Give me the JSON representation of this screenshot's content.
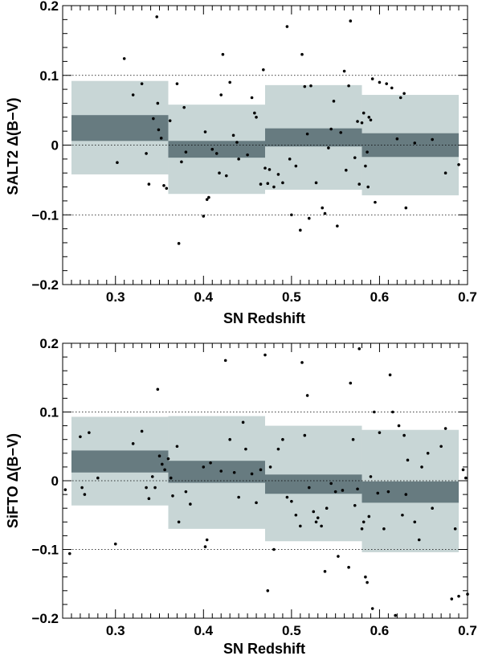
{
  "chart_data": [
    {
      "type": "scatter",
      "xlabel": "SN Redshift",
      "ylabel": "SALT2 Δ(B−V)",
      "xlim": [
        0.24,
        0.7
      ],
      "ylim": [
        -0.2,
        0.2
      ],
      "x_ticks": [
        0.3,
        0.4,
        0.5,
        0.6,
        0.7
      ],
      "x_tick_labels": [
        "0.3",
        "0.4",
        "0.5",
        "0.6",
        "0.7"
      ],
      "y_ticks": [
        -0.2,
        -0.1,
        0,
        0.1,
        0.2
      ],
      "y_tick_labels": [
        "−0.2",
        "−0.1",
        "0",
        "0.1",
        "0.2"
      ],
      "reference_lines": [
        -0.1,
        0,
        0.1
      ],
      "colors": {
        "outer_band": "#c8d6d6",
        "inner_band": "#677b80",
        "points": "#000000"
      },
      "bins": [
        {
          "x0": 0.25,
          "x1": 0.36,
          "outer": [
            -0.042,
            0.092
          ],
          "inner": [
            0.006,
            0.043
          ]
        },
        {
          "x0": 0.36,
          "x1": 0.47,
          "outer": [
            -0.07,
            0.058
          ],
          "inner": [
            -0.018,
            0.006
          ]
        },
        {
          "x0": 0.47,
          "x1": 0.58,
          "outer": [
            -0.064,
            0.086
          ],
          "inner": [
            -0.002,
            0.024
          ]
        },
        {
          "x0": 0.58,
          "x1": 0.69,
          "outer": [
            -0.072,
            0.072
          ],
          "inner": [
            -0.017,
            0.017
          ]
        }
      ],
      "points": [
        [
          0.302,
          -0.025
        ],
        [
          0.31,
          0.124
        ],
        [
          0.32,
          0.072
        ],
        [
          0.33,
          0.088
        ],
        [
          0.335,
          -0.012
        ],
        [
          0.338,
          -0.056
        ],
        [
          0.343,
          0.038
        ],
        [
          0.347,
          0.184
        ],
        [
          0.348,
          0.06
        ],
        [
          0.349,
          0.022
        ],
        [
          0.352,
          0.01
        ],
        [
          0.355,
          -0.058
        ],
        [
          0.358,
          -0.062
        ],
        [
          0.362,
          0.035
        ],
        [
          0.37,
          0.088
        ],
        [
          0.372,
          -0.141
        ],
        [
          0.375,
          -0.024
        ],
        [
          0.378,
          0.054
        ],
        [
          0.38,
          -0.01
        ],
        [
          0.4,
          -0.102
        ],
        [
          0.402,
          0.019
        ],
        [
          0.404,
          -0.078
        ],
        [
          0.406,
          -0.075
        ],
        [
          0.41,
          -0.006
        ],
        [
          0.415,
          -0.012
        ],
        [
          0.418,
          -0.04
        ],
        [
          0.42,
          0.072
        ],
        [
          0.422,
          0.13
        ],
        [
          0.426,
          -0.044
        ],
        [
          0.43,
          0.09
        ],
        [
          0.434,
          0.014
        ],
        [
          0.438,
          0.004
        ],
        [
          0.44,
          -0.02
        ],
        [
          0.45,
          -0.014
        ],
        [
          0.455,
          0.068
        ],
        [
          0.458,
          0.046
        ],
        [
          0.46,
          0.04
        ],
        [
          0.465,
          -0.056
        ],
        [
          0.468,
          0.108
        ],
        [
          0.47,
          -0.033
        ],
        [
          0.473,
          -0.055
        ],
        [
          0.475,
          -0.035
        ],
        [
          0.48,
          -0.06
        ],
        [
          0.485,
          -0.042
        ],
        [
          0.49,
          -0.054
        ],
        [
          0.495,
          0.17
        ],
        [
          0.498,
          -0.02
        ],
        [
          0.5,
          -0.1
        ],
        [
          0.505,
          -0.03
        ],
        [
          0.51,
          -0.122
        ],
        [
          0.512,
          0.13
        ],
        [
          0.515,
          0.084
        ],
        [
          0.518,
          0.016
        ],
        [
          0.52,
          -0.105
        ],
        [
          0.522,
          0.085
        ],
        [
          0.528,
          -0.054
        ],
        [
          0.535,
          -0.09
        ],
        [
          0.538,
          -0.098
        ],
        [
          0.542,
          -0.004
        ],
        [
          0.545,
          0.023
        ],
        [
          0.548,
          0.063
        ],
        [
          0.552,
          -0.116
        ],
        [
          0.556,
          0.018
        ],
        [
          0.56,
          0.106
        ],
        [
          0.562,
          -0.036
        ],
        [
          0.565,
          0.085
        ],
        [
          0.567,
          0.178
        ],
        [
          0.572,
          -0.018
        ],
        [
          0.575,
          0.034
        ],
        [
          0.577,
          -0.056
        ],
        [
          0.58,
          0.032
        ],
        [
          0.582,
          0.046
        ],
        [
          0.584,
          -0.03
        ],
        [
          0.586,
          -0.01
        ],
        [
          0.587,
          -0.06
        ],
        [
          0.588,
          0.04
        ],
        [
          0.59,
          0.036
        ],
        [
          0.592,
          0.095
        ],
        [
          0.595,
          -0.082
        ],
        [
          0.6,
          0.09
        ],
        [
          0.608,
          0.088
        ],
        [
          0.614,
          0.082
        ],
        [
          0.62,
          0.009
        ],
        [
          0.624,
          0.068
        ],
        [
          0.628,
          0.074
        ],
        [
          0.63,
          -0.09
        ],
        [
          0.64,
          0.003
        ],
        [
          0.66,
          0.008
        ],
        [
          0.675,
          -0.04
        ],
        [
          0.69,
          -0.028
        ]
      ]
    },
    {
      "type": "scatter",
      "xlabel": "SN Redshift",
      "ylabel": "SiFTO Δ(B−V)",
      "xlim": [
        0.24,
        0.7
      ],
      "ylim": [
        -0.2,
        0.2
      ],
      "x_ticks": [
        0.3,
        0.4,
        0.5,
        0.6,
        0.7
      ],
      "x_tick_labels": [
        "0.3",
        "0.4",
        "0.5",
        "0.6",
        "0.7"
      ],
      "y_ticks": [
        -0.2,
        -0.1,
        0,
        0.1,
        0.2
      ],
      "y_tick_labels": [
        "−0.2",
        "−0.1",
        "0",
        "0.1",
        "0.2"
      ],
      "reference_lines": [
        -0.1,
        0,
        0.1
      ],
      "colors": {
        "outer_band": "#c8d6d6",
        "inner_band": "#677b80",
        "points": "#000000"
      },
      "bins": [
        {
          "x0": 0.25,
          "x1": 0.36,
          "outer": [
            -0.036,
            0.093
          ],
          "inner": [
            0.012,
            0.044
          ]
        },
        {
          "x0": 0.36,
          "x1": 0.47,
          "outer": [
            -0.07,
            0.094
          ],
          "inner": [
            -0.003,
            0.029
          ]
        },
        {
          "x0": 0.47,
          "x1": 0.58,
          "outer": [
            -0.088,
            0.08
          ],
          "inner": [
            -0.019,
            0.009
          ]
        },
        {
          "x0": 0.58,
          "x1": 0.69,
          "outer": [
            -0.104,
            0.074
          ],
          "inner": [
            -0.032,
            -0.001
          ]
        }
      ],
      "points": [
        [
          0.243,
          -0.013
        ],
        [
          0.248,
          -0.106
        ],
        [
          0.26,
          0.064
        ],
        [
          0.262,
          -0.01
        ],
        [
          0.265,
          -0.02
        ],
        [
          0.27,
          0.07
        ],
        [
          0.28,
          0.004
        ],
        [
          0.3,
          -0.092
        ],
        [
          0.32,
          0.054
        ],
        [
          0.33,
          0.072
        ],
        [
          0.335,
          -0.01
        ],
        [
          0.338,
          -0.026
        ],
        [
          0.342,
          0.006
        ],
        [
          0.345,
          -0.01
        ],
        [
          0.348,
          0.133
        ],
        [
          0.35,
          0.036
        ],
        [
          0.353,
          0.024
        ],
        [
          0.356,
          0.016
        ],
        [
          0.36,
          0.032
        ],
        [
          0.363,
          0.004
        ],
        [
          0.365,
          -0.022
        ],
        [
          0.37,
          0.05
        ],
        [
          0.372,
          -0.06
        ],
        [
          0.38,
          -0.016
        ],
        [
          0.385,
          -0.034
        ],
        [
          0.4,
          0.02
        ],
        [
          0.402,
          -0.096
        ],
        [
          0.404,
          -0.086
        ],
        [
          0.408,
          0.026
        ],
        [
          0.42,
          0.014
        ],
        [
          0.425,
          0.175
        ],
        [
          0.43,
          0.06
        ],
        [
          0.435,
          0.012
        ],
        [
          0.44,
          -0.024
        ],
        [
          0.445,
          0.085
        ],
        [
          0.448,
          0.046
        ],
        [
          0.455,
          0.01
        ],
        [
          0.46,
          -0.032
        ],
        [
          0.465,
          0.016
        ],
        [
          0.47,
          0.183
        ],
        [
          0.473,
          -0.16
        ],
        [
          0.476,
          0.02
        ],
        [
          0.48,
          -0.1
        ],
        [
          0.485,
          0.046
        ],
        [
          0.49,
          0.06
        ],
        [
          0.495,
          -0.024
        ],
        [
          0.5,
          -0.03
        ],
        [
          0.505,
          -0.05
        ],
        [
          0.51,
          -0.066
        ],
        [
          0.512,
          0.172
        ],
        [
          0.515,
          0.066
        ],
        [
          0.518,
          0.124
        ],
        [
          0.52,
          -0.01
        ],
        [
          0.525,
          -0.045
        ],
        [
          0.528,
          -0.06
        ],
        [
          0.53,
          -0.054
        ],
        [
          0.534,
          -0.066
        ],
        [
          0.538,
          -0.132
        ],
        [
          0.54,
          -0.04
        ],
        [
          0.545,
          -0.004
        ],
        [
          0.55,
          -0.016
        ],
        [
          0.553,
          -0.11
        ],
        [
          0.558,
          -0.014
        ],
        [
          0.565,
          -0.126
        ],
        [
          0.567,
          0.142
        ],
        [
          0.57,
          0.06
        ],
        [
          0.572,
          -0.036
        ],
        [
          0.575,
          -0.012
        ],
        [
          0.577,
          0.192
        ],
        [
          0.58,
          -0.07
        ],
        [
          0.582,
          -0.06
        ],
        [
          0.584,
          -0.14
        ],
        [
          0.586,
          -0.148
        ],
        [
          0.588,
          -0.052
        ],
        [
          0.59,
          0.006
        ],
        [
          0.592,
          -0.186
        ],
        [
          0.594,
          0.1
        ],
        [
          0.598,
          -0.018
        ],
        [
          0.6,
          0.07
        ],
        [
          0.605,
          -0.07
        ],
        [
          0.61,
          -0.016
        ],
        [
          0.612,
          0.154
        ],
        [
          0.615,
          0.1
        ],
        [
          0.618,
          -0.196
        ],
        [
          0.622,
          0.08
        ],
        [
          0.626,
          -0.05
        ],
        [
          0.628,
          0.066
        ],
        [
          0.63,
          -0.02
        ],
        [
          0.632,
          0.03
        ],
        [
          0.64,
          -0.06
        ],
        [
          0.645,
          -0.086
        ],
        [
          0.648,
          0.02
        ],
        [
          0.655,
          0.04
        ],
        [
          0.66,
          -0.04
        ],
        [
          0.67,
          0.05
        ],
        [
          0.675,
          0.076
        ],
        [
          0.682,
          -0.172
        ],
        [
          0.686,
          -0.07
        ],
        [
          0.69,
          -0.168
        ],
        [
          0.695,
          0.016
        ],
        [
          0.698,
          0.004
        ],
        [
          0.7,
          -0.165
        ]
      ]
    }
  ]
}
